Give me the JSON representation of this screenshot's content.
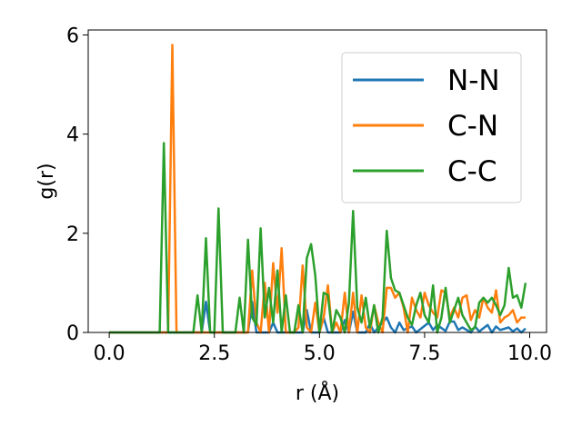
{
  "chart_data": {
    "type": "line",
    "title": "",
    "xlabel": "r (Å)",
    "ylabel": "g(r)",
    "xlim": [
      -0.5,
      10.4
    ],
    "ylim": [
      0,
      6.1
    ],
    "x_ticks": [
      "0.0",
      "2.5",
      "5.0",
      "7.5",
      "10.0"
    ],
    "y_ticks": [
      "0",
      "2",
      "4",
      "6"
    ],
    "grid": false,
    "legend_position": "top-right",
    "colors": {
      "N-N": "#1f77b4",
      "C-N": "#ff7f0e",
      "C-C": "#2ca02c"
    },
    "series": [
      {
        "name": "N-N",
        "points": [
          [
            0.0,
            0
          ],
          [
            1.2,
            0
          ],
          [
            2.2,
            0
          ],
          [
            2.3,
            0.62
          ],
          [
            2.4,
            0
          ],
          [
            3.2,
            0
          ],
          [
            3.3,
            0.0
          ],
          [
            3.4,
            0.62
          ],
          [
            3.5,
            0
          ],
          [
            3.8,
            0
          ],
          [
            3.9,
            0.2
          ],
          [
            4.0,
            0
          ],
          [
            4.6,
            0
          ],
          [
            4.7,
            0.45
          ],
          [
            4.8,
            0
          ],
          [
            5.0,
            0
          ],
          [
            5.1,
            0.3
          ],
          [
            5.2,
            0
          ],
          [
            5.5,
            0
          ],
          [
            5.6,
            0.25
          ],
          [
            5.7,
            0
          ],
          [
            5.8,
            0.42
          ],
          [
            5.9,
            0
          ],
          [
            6.1,
            0
          ],
          [
            6.2,
            0.18
          ],
          [
            6.3,
            0
          ],
          [
            6.6,
            0.3
          ],
          [
            6.7,
            0.1
          ],
          [
            6.8,
            0.0
          ],
          [
            6.9,
            0.2
          ],
          [
            7.0,
            0.05
          ],
          [
            7.2,
            0.12
          ],
          [
            7.3,
            0
          ],
          [
            7.6,
            0.2
          ],
          [
            7.7,
            0.05
          ],
          [
            7.8,
            0.15
          ],
          [
            8.0,
            0.03
          ],
          [
            8.1,
            0.22
          ],
          [
            8.2,
            0.22
          ],
          [
            8.3,
            0.05
          ],
          [
            8.4,
            0.1
          ],
          [
            8.6,
            0.0
          ],
          [
            8.7,
            0.12
          ],
          [
            8.8,
            0.02
          ],
          [
            9.0,
            0.15
          ],
          [
            9.1,
            0.0
          ],
          [
            9.2,
            0.12
          ],
          [
            9.3,
            0.05
          ],
          [
            9.5,
            0.1
          ],
          [
            9.6,
            0.02
          ],
          [
            9.7,
            0.08
          ],
          [
            9.8,
            0.0
          ],
          [
            9.9,
            0.08
          ]
        ]
      },
      {
        "name": "C-N",
        "points": [
          [
            0.0,
            0
          ],
          [
            1.3,
            0
          ],
          [
            1.4,
            0
          ],
          [
            1.5,
            5.8
          ],
          [
            1.6,
            0
          ],
          [
            3.2,
            0
          ],
          [
            3.3,
            0.0
          ],
          [
            3.4,
            1.25
          ],
          [
            3.5,
            0.2
          ],
          [
            3.6,
            0.0
          ],
          [
            3.7,
            1.0
          ],
          [
            3.8,
            0.0
          ],
          [
            3.9,
            1.4
          ],
          [
            4.0,
            0.4
          ],
          [
            4.1,
            1.7
          ],
          [
            4.2,
            0.0
          ],
          [
            4.4,
            0.0
          ],
          [
            4.5,
            0.1
          ],
          [
            4.6,
            1.35
          ],
          [
            4.7,
            0.1
          ],
          [
            4.8,
            0.0
          ],
          [
            4.9,
            0.6
          ],
          [
            5.0,
            0.0
          ],
          [
            5.1,
            0.3
          ],
          [
            5.2,
            0.95
          ],
          [
            5.3,
            0.0
          ],
          [
            5.4,
            0.2
          ],
          [
            5.5,
            0.0
          ],
          [
            5.6,
            0.8
          ],
          [
            5.7,
            0.0
          ],
          [
            5.8,
            0.8
          ],
          [
            5.9,
            0.0
          ],
          [
            6.0,
            0.75
          ],
          [
            6.1,
            0.1
          ],
          [
            6.2,
            0.0
          ],
          [
            6.3,
            0.55
          ],
          [
            6.4,
            0.2
          ],
          [
            6.5,
            0.0
          ],
          [
            6.6,
            0.9
          ],
          [
            6.7,
            0.9
          ],
          [
            6.8,
            0.7
          ],
          [
            6.9,
            0.8
          ],
          [
            7.0,
            0.5
          ],
          [
            7.1,
            0.0
          ],
          [
            7.2,
            0.7
          ],
          [
            7.3,
            0.45
          ],
          [
            7.4,
            0.3
          ],
          [
            7.5,
            0.8
          ],
          [
            7.6,
            0.55
          ],
          [
            7.7,
            0.4
          ],
          [
            7.8,
            0.3
          ],
          [
            7.9,
            0.85
          ],
          [
            8.0,
            0.8
          ],
          [
            8.1,
            0.3
          ],
          [
            8.2,
            0.5
          ],
          [
            8.3,
            0.3
          ],
          [
            8.4,
            0.7
          ],
          [
            8.5,
            0.75
          ],
          [
            8.6,
            0.25
          ],
          [
            8.7,
            0.45
          ],
          [
            8.8,
            0.3
          ],
          [
            8.9,
            0.7
          ],
          [
            9.0,
            0.5
          ],
          [
            9.1,
            0.4
          ],
          [
            9.2,
            0.85
          ],
          [
            9.3,
            0.2
          ],
          [
            9.4,
            0.3
          ],
          [
            9.5,
            0.35
          ],
          [
            9.6,
            0.45
          ],
          [
            9.7,
            0.2
          ],
          [
            9.8,
            0.3
          ],
          [
            9.9,
            0.3
          ]
        ]
      },
      {
        "name": "C-C",
        "points": [
          [
            0.0,
            0
          ],
          [
            1.2,
            0
          ],
          [
            1.3,
            3.82
          ],
          [
            1.4,
            0
          ],
          [
            2.0,
            0
          ],
          [
            2.1,
            0.75
          ],
          [
            2.2,
            0
          ],
          [
            2.3,
            1.9
          ],
          [
            2.4,
            0
          ],
          [
            2.5,
            0
          ],
          [
            2.6,
            2.5
          ],
          [
            2.7,
            0
          ],
          [
            3.0,
            0
          ],
          [
            3.1,
            0.7
          ],
          [
            3.2,
            0
          ],
          [
            3.3,
            1.87
          ],
          [
            3.4,
            0.3
          ],
          [
            3.5,
            0.15
          ],
          [
            3.6,
            2.1
          ],
          [
            3.7,
            0.3
          ],
          [
            3.8,
            0.9
          ],
          [
            3.9,
            0.2
          ],
          [
            4.0,
            1.25
          ],
          [
            4.1,
            0.0
          ],
          [
            4.2,
            0.75
          ],
          [
            4.3,
            0.0
          ],
          [
            4.4,
            0.0
          ],
          [
            4.5,
            0.55
          ],
          [
            4.6,
            0.0
          ],
          [
            4.7,
            1.5
          ],
          [
            4.8,
            1.78
          ],
          [
            4.9,
            1.15
          ],
          [
            5.0,
            0.0
          ],
          [
            5.1,
            0.8
          ],
          [
            5.2,
            0.75
          ],
          [
            5.3,
            0.0
          ],
          [
            5.4,
            0.45
          ],
          [
            5.5,
            0.3
          ],
          [
            5.6,
            0.0
          ],
          [
            5.7,
            0.6
          ],
          [
            5.8,
            2.45
          ],
          [
            5.9,
            0.5
          ],
          [
            6.0,
            0.2
          ],
          [
            6.1,
            0.7
          ],
          [
            6.2,
            0.1
          ],
          [
            6.3,
            0.55
          ],
          [
            6.4,
            0.0
          ],
          [
            6.5,
            0.3
          ],
          [
            6.6,
            2.05
          ],
          [
            6.7,
            1.1
          ],
          [
            6.8,
            0.85
          ],
          [
            6.9,
            0.8
          ],
          [
            7.0,
            0.55
          ],
          [
            7.1,
            0.3
          ],
          [
            7.2,
            0.15
          ],
          [
            7.3,
            0.55
          ],
          [
            7.4,
            0.8
          ],
          [
            7.5,
            0.35
          ],
          [
            7.6,
            0.2
          ],
          [
            7.7,
            0.95
          ],
          [
            7.8,
            0.0
          ],
          [
            7.9,
            0.3
          ],
          [
            8.0,
            0.9
          ],
          [
            8.1,
            0.2
          ],
          [
            8.2,
            0.45
          ],
          [
            8.3,
            0.7
          ],
          [
            8.4,
            0.35
          ],
          [
            8.5,
            0.2
          ],
          [
            8.6,
            0.05
          ],
          [
            8.7,
            0.1
          ],
          [
            8.8,
            0.6
          ],
          [
            8.9,
            0.7
          ],
          [
            9.0,
            0.6
          ],
          [
            9.1,
            0.7
          ],
          [
            9.2,
            0.55
          ],
          [
            9.3,
            0.35
          ],
          [
            9.4,
            0.55
          ],
          [
            9.5,
            1.3
          ],
          [
            9.6,
            0.7
          ],
          [
            9.7,
            0.75
          ],
          [
            9.8,
            0.5
          ],
          [
            9.9,
            1.0
          ]
        ]
      }
    ]
  }
}
